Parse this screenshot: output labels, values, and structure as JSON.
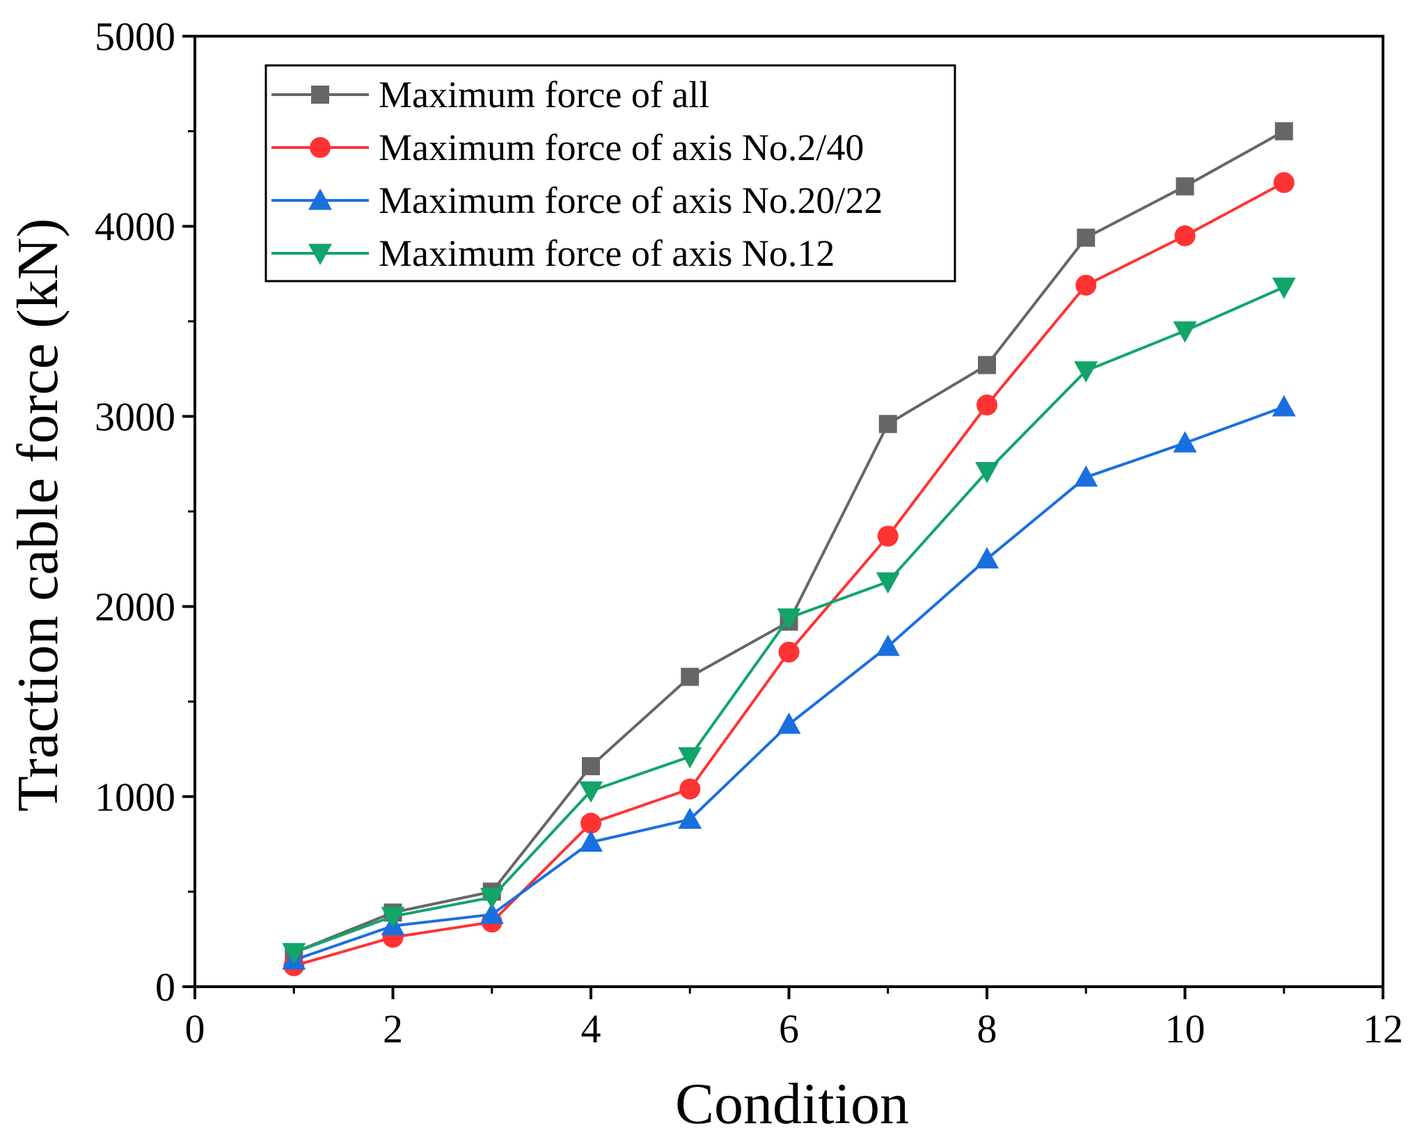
{
  "chart_data": {
    "type": "line",
    "title": "",
    "xlabel": "Condition",
    "ylabel": "Traction cable force (kN)",
    "xlim": [
      0,
      12
    ],
    "ylim": [
      0,
      5000
    ],
    "xticks": [
      0,
      2,
      4,
      6,
      8,
      10,
      12
    ],
    "yticks": [
      0,
      1000,
      2000,
      3000,
      4000,
      5000
    ],
    "x": [
      1,
      2,
      3,
      4,
      5,
      6,
      7,
      8,
      9,
      10,
      11
    ],
    "legend_position": "top-left",
    "series": [
      {
        "name": "Maximum force of all",
        "marker": "square",
        "color": "#666666",
        "values": [
          180,
          390,
          500,
          1160,
          1630,
          1920,
          2960,
          3270,
          3940,
          4210,
          4500
        ]
      },
      {
        "name": "Maximum force of axis No.2/40",
        "marker": "circle",
        "color": "#ff3333",
        "values": [
          110,
          260,
          340,
          860,
          1040,
          1760,
          2370,
          3060,
          3690,
          3950,
          4230
        ]
      },
      {
        "name": "Maximum force of axis No.20/22",
        "marker": "triangle-up",
        "color": "#1a6fdf",
        "values": [
          140,
          320,
          380,
          760,
          880,
          1380,
          1790,
          2250,
          2680,
          2860,
          3050
        ]
      },
      {
        "name": "Maximum force of axis No.12",
        "marker": "triangle-down",
        "color": "#11a56a",
        "values": [
          180,
          370,
          470,
          1030,
          1210,
          1940,
          2130,
          2710,
          3240,
          3450,
          3680
        ]
      }
    ]
  }
}
